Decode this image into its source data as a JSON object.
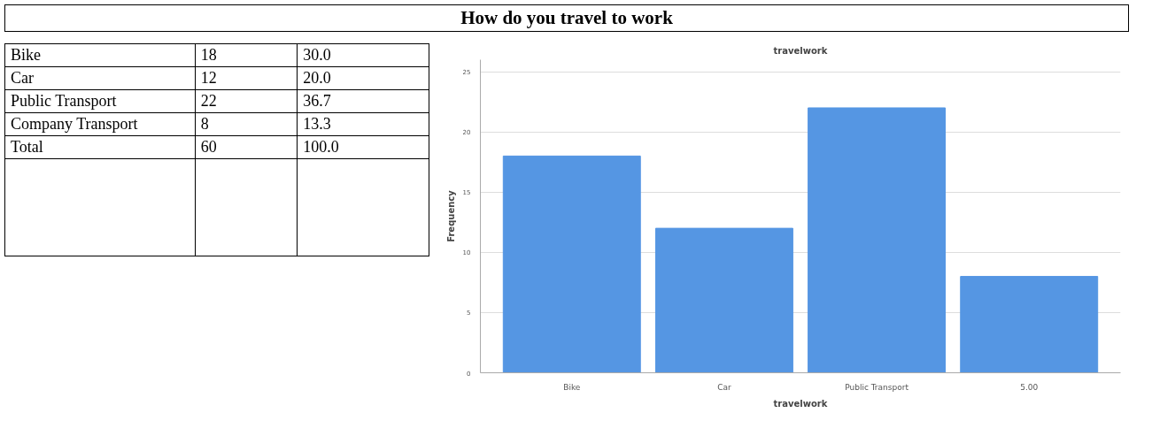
{
  "chart_data": [
    {
      "type": "other",
      "title": "How do you travel to work",
      "annotations": [
        "Bike",
        "18",
        "30.0",
        "Car",
        "12",
        "20.0",
        "Public Transport",
        "22",
        "36.7",
        "Company Transport",
        "8",
        "13.3",
        "Total",
        "60",
        "100.0"
      ]
    },
    {
      "type": "bar",
      "title": "travelwork",
      "xlabel": "travelwork",
      "ylabel": "Frequency",
      "categories": [
        "Bike",
        "Car",
        "Public Transport",
        "5.00"
      ],
      "values": [
        18,
        12,
        22,
        8
      ],
      "color": "#5596e3",
      "ylim": [
        0,
        26
      ],
      "yticks": [
        0,
        5,
        10,
        15,
        20,
        25
      ],
      "grid": "y"
    }
  ]
}
